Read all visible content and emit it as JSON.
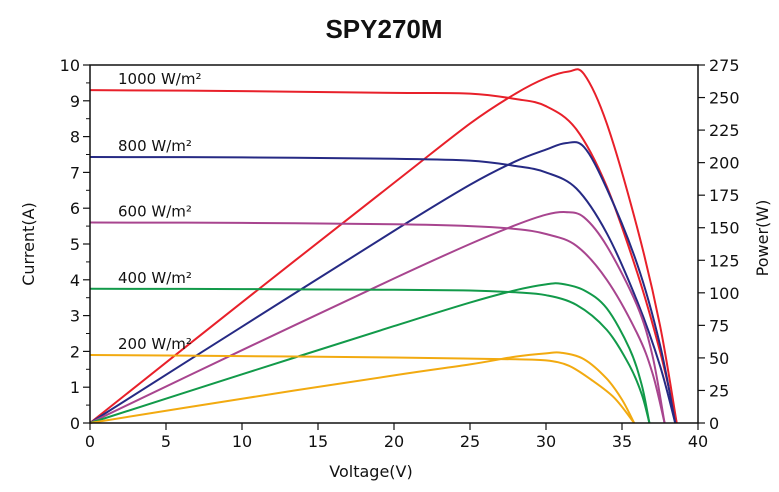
{
  "chart_data": {
    "type": "line",
    "title": "SPY270M",
    "xlabel": "Voltage(V)",
    "ylabel": "Current(A)",
    "y2label": "Power(W)",
    "xlim": [
      0,
      40
    ],
    "ylim": [
      0,
      10
    ],
    "y2lim": [
      0,
      275
    ],
    "xticks": [
      "0",
      "5",
      "10",
      "15",
      "20",
      "25",
      "30",
      "35",
      "40"
    ],
    "yticks": [
      "0",
      "1",
      "2",
      "3",
      "4",
      "5",
      "6",
      "7",
      "8",
      "9",
      "10"
    ],
    "y2ticks": [
      "0",
      "25",
      "50",
      "75",
      "100",
      "125",
      "150",
      "175",
      "200",
      "225",
      "250",
      "275"
    ],
    "grid": false,
    "series": [
      {
        "name": "1000 W/m²",
        "color": "#e8202a",
        "iv": [
          [
            0,
            9.3
          ],
          [
            10,
            9.27
          ],
          [
            20,
            9.22
          ],
          [
            25,
            9.2
          ],
          [
            28,
            9.05
          ],
          [
            30,
            8.85
          ],
          [
            32,
            8.2
          ],
          [
            34,
            6.6
          ],
          [
            36,
            4.2
          ],
          [
            37.5,
            2.0
          ],
          [
            38.6,
            0
          ]
        ],
        "pv": [
          [
            0,
            0
          ],
          [
            10,
            92.7
          ],
          [
            20,
            184.4
          ],
          [
            25,
            230
          ],
          [
            28,
            253
          ],
          [
            30,
            265
          ],
          [
            31.5,
            270
          ],
          [
            32.5,
            268
          ],
          [
            34,
            230
          ],
          [
            36,
            150
          ],
          [
            37.5,
            75
          ],
          [
            38.6,
            0
          ]
        ]
      },
      {
        "name": "800 W/m²",
        "color": "#262a84",
        "iv": [
          [
            0,
            7.43
          ],
          [
            10,
            7.42
          ],
          [
            20,
            7.38
          ],
          [
            25,
            7.33
          ],
          [
            28,
            7.18
          ],
          [
            30,
            7.0
          ],
          [
            32,
            6.55
          ],
          [
            34,
            5.3
          ],
          [
            36,
            3.4
          ],
          [
            37.5,
            1.6
          ],
          [
            38.5,
            0
          ]
        ],
        "pv": [
          [
            0,
            0
          ],
          [
            10,
            74
          ],
          [
            20,
            147.6
          ],
          [
            25,
            183
          ],
          [
            28,
            201
          ],
          [
            30,
            210
          ],
          [
            31.3,
            215
          ],
          [
            32.5,
            212
          ],
          [
            34,
            180
          ],
          [
            36,
            122
          ],
          [
            37.5,
            60
          ],
          [
            38.5,
            0
          ]
        ]
      },
      {
        "name": "600 W/m²",
        "color": "#a8458f",
        "iv": [
          [
            0,
            5.6
          ],
          [
            10,
            5.59
          ],
          [
            20,
            5.55
          ],
          [
            25,
            5.5
          ],
          [
            28,
            5.42
          ],
          [
            30,
            5.28
          ],
          [
            32,
            4.95
          ],
          [
            34,
            4.0
          ],
          [
            36,
            2.5
          ],
          [
            37,
            1.4
          ],
          [
            37.8,
            0
          ]
        ],
        "pv": [
          [
            0,
            0
          ],
          [
            10,
            55.9
          ],
          [
            20,
            111
          ],
          [
            25,
            137.5
          ],
          [
            28,
            152
          ],
          [
            30,
            160
          ],
          [
            31.3,
            162
          ],
          [
            32.5,
            158
          ],
          [
            34,
            136
          ],
          [
            36,
            90
          ],
          [
            37,
            52
          ],
          [
            37.8,
            0
          ]
        ]
      },
      {
        "name": "400 W/m²",
        "color": "#129a4a",
        "iv": [
          [
            0,
            3.75
          ],
          [
            10,
            3.74
          ],
          [
            20,
            3.72
          ],
          [
            25,
            3.7
          ],
          [
            28,
            3.65
          ],
          [
            30,
            3.57
          ],
          [
            32,
            3.3
          ],
          [
            34,
            2.6
          ],
          [
            35.5,
            1.6
          ],
          [
            36.3,
            0.8
          ],
          [
            36.8,
            0
          ]
        ],
        "pv": [
          [
            0,
            0
          ],
          [
            10,
            37.4
          ],
          [
            20,
            74.4
          ],
          [
            25,
            92.5
          ],
          [
            28,
            102
          ],
          [
            30,
            106.5
          ],
          [
            31,
            107
          ],
          [
            32.5,
            102
          ],
          [
            34,
            88
          ],
          [
            35.5,
            57
          ],
          [
            36.3,
            29
          ],
          [
            36.8,
            0
          ]
        ]
      },
      {
        "name": "200 W/m²",
        "color": "#f2aa10",
        "iv": [
          [
            0,
            1.9
          ],
          [
            10,
            1.87
          ],
          [
            20,
            1.83
          ],
          [
            25,
            1.8
          ],
          [
            28,
            1.78
          ],
          [
            30,
            1.75
          ],
          [
            31.5,
            1.6
          ],
          [
            33,
            1.2
          ],
          [
            34.5,
            0.7
          ],
          [
            35.8,
            0
          ]
        ],
        "pv": [
          [
            0,
            0
          ],
          [
            10,
            18.7
          ],
          [
            20,
            36.6
          ],
          [
            25,
            45
          ],
          [
            28,
            51
          ],
          [
            30,
            53.5
          ],
          [
            31,
            54
          ],
          [
            32.5,
            49
          ],
          [
            34,
            34
          ],
          [
            35,
            18
          ],
          [
            35.8,
            0
          ]
        ]
      }
    ]
  }
}
